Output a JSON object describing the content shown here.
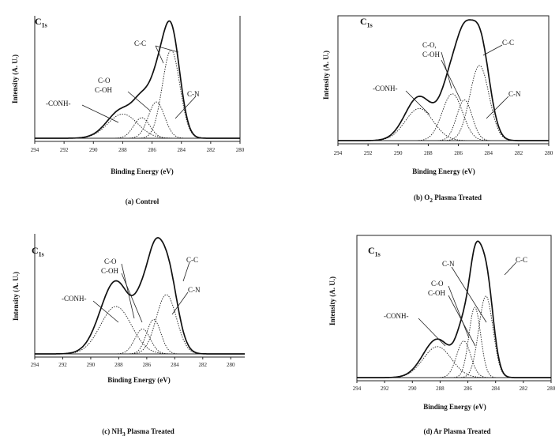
{
  "chart_data": [
    {
      "type": "line",
      "panel": "a",
      "caption": "(a) Control",
      "core_label": "C",
      "core_sub": "1s",
      "xlabel": "Binding Energy (eV)",
      "ylabel": "Intensity (A. U.)",
      "x_ticks": [
        294,
        292,
        290,
        288,
        286,
        284,
        282,
        280
      ],
      "xlim": [
        294,
        280
      ],
      "ylim": [
        0,
        1
      ],
      "x_reversed": true,
      "envelope": {
        "name": "",
        "peak_x": 285.1,
        "peak_y": 0.97
      },
      "series": [
        {
          "name": "C-C",
          "center": 284.7,
          "height": 0.73,
          "fwhm": 1.4
        },
        {
          "name": "C-N",
          "center": 285.7,
          "height": 0.3,
          "fwhm": 1.3
        },
        {
          "name": "C-O C-OH",
          "center": 286.7,
          "height": 0.17,
          "fwhm": 1.3
        },
        {
          "name": "-CONH-",
          "center": 288.0,
          "height": 0.2,
          "fwhm": 2.4
        }
      ],
      "labels": [
        {
          "text": "C-C"
        },
        {
          "text": "C-N"
        },
        {
          "text": "C-O"
        },
        {
          "text": "C-OH"
        },
        {
          "text": "-CONH-"
        }
      ]
    },
    {
      "type": "line",
      "panel": "b",
      "caption": "(b) O",
      "caption_sub": "2",
      "caption_rest": " Plasma Treated",
      "core_label": "C",
      "core_sub": "1s",
      "xlabel": "Binding Energy (eV)",
      "ylabel": "Intensity (A. U.)",
      "x_ticks": [
        294,
        292,
        290,
        288,
        286,
        284,
        282,
        280
      ],
      "xlim": [
        294,
        280
      ],
      "ylim": [
        0,
        1
      ],
      "x_reversed": true,
      "envelope": {
        "name": "",
        "peak_x": 285.0,
        "peak_y": 0.98
      },
      "series": [
        {
          "name": "C-C",
          "center": 284.6,
          "height": 0.61,
          "fwhm": 1.5
        },
        {
          "name": "C-N",
          "center": 285.6,
          "height": 0.33,
          "fwhm": 1.2
        },
        {
          "name": "C-O C-OH",
          "center": 286.4,
          "height": 0.38,
          "fwhm": 1.6
        },
        {
          "name": "-CONH-",
          "center": 288.6,
          "height": 0.26,
          "fwhm": 2.2
        }
      ],
      "labels": [
        {
          "text": "C-C"
        },
        {
          "text": "C-N"
        },
        {
          "text": "C-O,"
        },
        {
          "text": "C-OH"
        },
        {
          "text": "-CONH-"
        }
      ]
    },
    {
      "type": "line",
      "panel": "c",
      "caption": "(c) NH",
      "caption_sub": "3",
      "caption_rest": " Plasma Treated",
      "core_label": "C",
      "core_sub": "1s",
      "xlabel": "Binding Energy (eV)",
      "ylabel": "Intensity (A. U.)",
      "x_ticks": [
        294,
        292,
        290,
        288,
        286,
        284,
        282,
        280
      ],
      "xlim": [
        294,
        279
      ],
      "ylim": [
        0,
        1
      ],
      "x_reversed": true,
      "envelope": {
        "name": "",
        "peak_x": 285.3,
        "peak_y": 0.98
      },
      "series": [
        {
          "name": "C-C",
          "center": 284.6,
          "height": 0.5,
          "fwhm": 1.7
        },
        {
          "name": "C-N",
          "center": 285.5,
          "height": 0.29,
          "fwhm": 1.2
        },
        {
          "name": "C-O C-OH",
          "center": 286.3,
          "height": 0.21,
          "fwhm": 1.3
        },
        {
          "name": "-CONH-",
          "center": 288.2,
          "height": 0.4,
          "fwhm": 2.6
        }
      ],
      "labels": [
        {
          "text": "C-C"
        },
        {
          "text": "C-N"
        },
        {
          "text": "C-O"
        },
        {
          "text": "C-OH"
        },
        {
          "text": "-CONH-"
        }
      ]
    },
    {
      "type": "line",
      "panel": "d",
      "caption": "(d) Ar Plasma Treated",
      "core_label": "C",
      "core_sub": "1s",
      "xlabel": "Binding Energy (eV)",
      "ylabel": "Intensity (A. U.)",
      "x_ticks": [
        294,
        292,
        290,
        288,
        286,
        284,
        282,
        280
      ],
      "xlim": [
        294,
        280
      ],
      "ylim": [
        0,
        1
      ],
      "x_reversed": true,
      "envelope": {
        "name": "",
        "peak_x": 285.2,
        "peak_y": 0.97
      },
      "series": [
        {
          "name": "C-C",
          "center": 284.7,
          "height": 0.58,
          "fwhm": 1.2
        },
        {
          "name": "C-N",
          "center": 285.5,
          "height": 0.5,
          "fwhm": 1.0
        },
        {
          "name": "C-O C-OH",
          "center": 286.3,
          "height": 0.26,
          "fwhm": 1.2
        },
        {
          "name": "-CONH-",
          "center": 288.2,
          "height": 0.22,
          "fwhm": 2.4
        }
      ],
      "labels": [
        {
          "text": "C-C"
        },
        {
          "text": "C-N"
        },
        {
          "text": "C-O"
        },
        {
          "text": "C-OH"
        },
        {
          "text": "-CONH-"
        }
      ]
    }
  ]
}
